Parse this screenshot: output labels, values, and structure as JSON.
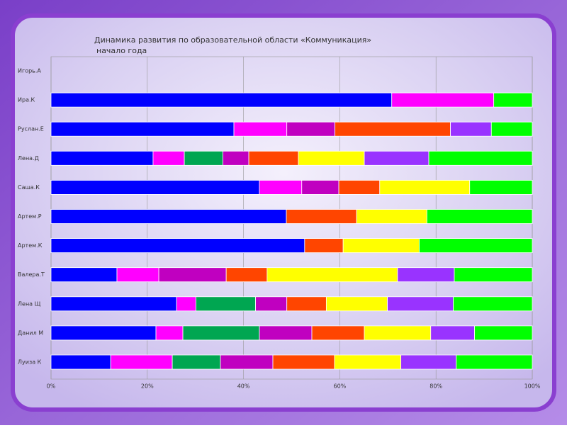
{
  "chart_data": {
    "type": "stacked-barh",
    "title": "Динамика развития по образовательной  области «Коммуникация»",
    "subtitle": "начало года",
    "categories": [
      "Игорь.А",
      "Ира.К",
      "Руслан.Е",
      "Лена.Д",
      "Саша.К",
      "Артем.Р",
      "Артем.К",
      "Валера.Т",
      "Лена Щ",
      "Данил М",
      "Луиза К"
    ],
    "series": [
      {
        "color": "#0000ff",
        "values": [
          0,
          70.8,
          38,
          21.2,
          43.3,
          48.9,
          52.7,
          13.7,
          26.1,
          21.8,
          12.4
        ]
      },
      {
        "color": "#ff00ff",
        "values": [
          0,
          21.2,
          11,
          6.5,
          8.8,
          0,
          0,
          8.7,
          4.0,
          5.6,
          12.8
        ]
      },
      {
        "color": "#00a651",
        "values": [
          0,
          0,
          0,
          8.0,
          0,
          0,
          0,
          0,
          12.4,
          15.9,
          10.0
        ]
      },
      {
        "color": "#c000c0",
        "values": [
          0,
          0,
          10,
          5.4,
          7.7,
          0,
          0,
          14.0,
          6.5,
          10.9,
          10.9
        ]
      },
      {
        "color": "#ff4500",
        "values": [
          0,
          0,
          24,
          10.3,
          8.5,
          14.6,
          8.0,
          8.5,
          8.2,
          10.9,
          12.8
        ]
      },
      {
        "color": "#ffff00",
        "values": [
          0,
          0,
          0,
          13.7,
          18.7,
          14.6,
          15.8,
          27.1,
          12.7,
          13.8,
          13.8
        ]
      },
      {
        "color": "#9933ff",
        "values": [
          0,
          0,
          8.5,
          13.4,
          0,
          0,
          0,
          11.8,
          13.7,
          9.1,
          11.5
        ]
      },
      {
        "color": "#00ff00",
        "values": [
          0,
          8.0,
          8.5,
          21.5,
          13.0,
          21.9,
          23.5,
          16.2,
          16.4,
          12.0,
          15.8
        ]
      }
    ],
    "xlim": [
      0,
      100
    ],
    "xticks": [
      {
        "value": 0,
        "label": "0%"
      },
      {
        "value": 20,
        "label": "20%"
      },
      {
        "value": 40,
        "label": "40%"
      },
      {
        "value": 60,
        "label": "60%"
      },
      {
        "value": 80,
        "label": "80%"
      },
      {
        "value": 100,
        "label": "100%"
      }
    ],
    "grid": true
  }
}
